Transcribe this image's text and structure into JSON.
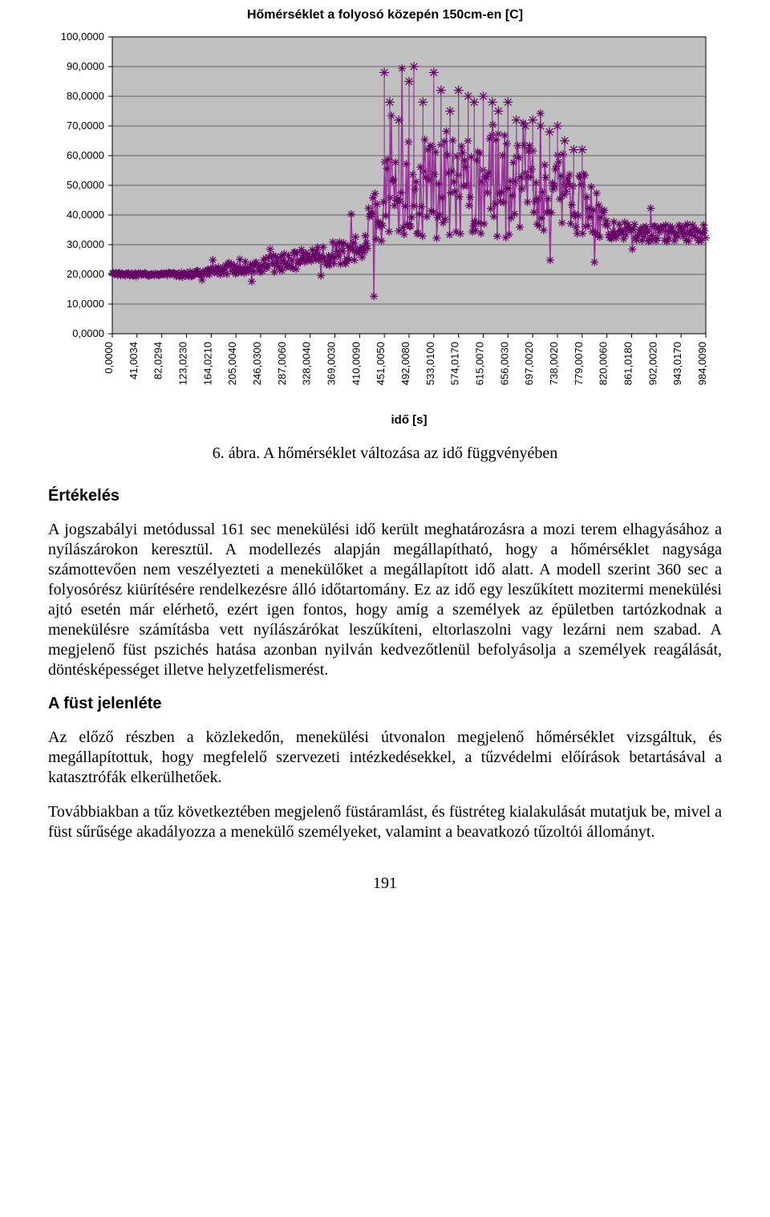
{
  "chart": {
    "type": "scatter-line",
    "title": "Hőmérséklet a folyosó közepén 150cm-en [C]",
    "title_fontsize": 16,
    "ylabel_ticks": [
      "0,0000",
      "10,0000",
      "20,0000",
      "30,0000",
      "40,0000",
      "50,0000",
      "60,0000",
      "70,0000",
      "80,0000",
      "90,0000",
      "100,0000"
    ],
    "ylim": [
      0,
      100
    ],
    "ytick_step": 10,
    "xlabel": "idő [s]",
    "xlabel_fontsize": 15,
    "x_categories": [
      "0,0000",
      "41,0034",
      "82,0294",
      "123,0230",
      "164,0210",
      "205,0040",
      "246,0300",
      "287,0060",
      "328,0040",
      "369,0030",
      "410,0090",
      "451,0050",
      "492,0080",
      "533,0100",
      "574,0170",
      "615,0070",
      "656,0030",
      "697,0020",
      "738,0020",
      "779,0070",
      "820,0060",
      "861,0180",
      "902,0020",
      "943,0170",
      "984,0090"
    ],
    "x_numeric": [
      0,
      41,
      82,
      123,
      164,
      205,
      246,
      287,
      328,
      369,
      410,
      451,
      492,
      533,
      574,
      615,
      656,
      697,
      738,
      779,
      820,
      861,
      902,
      943,
      984
    ],
    "series_color": "#993399",
    "series_color_dark": "#660066",
    "plot_bg": "#c0c0c0",
    "grid_color": "#000000",
    "tick_fontsize": 13,
    "marker_size": 5,
    "series": {
      "base": [
        [
          0,
          20
        ],
        [
          41,
          20
        ],
        [
          82,
          20
        ],
        [
          123,
          20
        ],
        [
          164,
          21
        ],
        [
          205,
          22
        ],
        [
          246,
          23
        ],
        [
          287,
          24
        ],
        [
          328,
          26
        ],
        [
          369,
          27
        ],
        [
          410,
          28
        ],
        [
          451,
          45
        ],
        [
          492,
          48
        ],
        [
          533,
          50
        ],
        [
          574,
          48
        ],
        [
          615,
          50
        ],
        [
          656,
          50
        ],
        [
          697,
          48
        ],
        [
          738,
          48
        ],
        [
          779,
          46
        ],
        [
          820,
          36
        ],
        [
          861,
          34
        ],
        [
          902,
          34
        ],
        [
          943,
          34
        ],
        [
          984,
          34
        ]
      ],
      "noise_band": [
        [
          0,
          1
        ],
        [
          41,
          1
        ],
        [
          82,
          1
        ],
        [
          123,
          2
        ],
        [
          164,
          3
        ],
        [
          205,
          4
        ],
        [
          246,
          5
        ],
        [
          287,
          6
        ],
        [
          328,
          7
        ],
        [
          369,
          8
        ],
        [
          410,
          10
        ],
        [
          451,
          30
        ],
        [
          492,
          35
        ],
        [
          533,
          38
        ],
        [
          574,
          35
        ],
        [
          615,
          35
        ],
        [
          656,
          35
        ],
        [
          697,
          30
        ],
        [
          738,
          28
        ],
        [
          779,
          25
        ],
        [
          820,
          8
        ],
        [
          861,
          6
        ],
        [
          902,
          6
        ],
        [
          943,
          6
        ],
        [
          984,
          6
        ]
      ],
      "peaks": [
        [
          451,
          88
        ],
        [
          460,
          78
        ],
        [
          475,
          72
        ],
        [
          492,
          85
        ],
        [
          500,
          90
        ],
        [
          515,
          78
        ],
        [
          533,
          88
        ],
        [
          545,
          82
        ],
        [
          560,
          75
        ],
        [
          574,
          82
        ],
        [
          590,
          80
        ],
        [
          600,
          78
        ],
        [
          615,
          80
        ],
        [
          630,
          78
        ],
        [
          640,
          75
        ],
        [
          656,
          78
        ],
        [
          670,
          72
        ],
        [
          685,
          70
        ],
        [
          697,
          72
        ],
        [
          710,
          70
        ],
        [
          725,
          68
        ],
        [
          738,
          70
        ],
        [
          750,
          65
        ],
        [
          765,
          62
        ],
        [
          779,
          62
        ]
      ]
    }
  },
  "caption": "6. ábra. A hőmérséklet változása az idő függvényében",
  "section1_title": "Értékelés",
  "para1": "A jogszabályi metódussal 161 sec menekülési idő került meghatározásra a mozi terem elhagyásához a nyílászárokon keresztül. A modellezés alapján megállapítható, hogy a hőmérséklet nagysága számottevően nem veszélyezteti a menekülőket a megállapított idő alatt. A modell szerint 360 sec a folyosórész kiürítésére rendelkezésre álló időtartomány. Ez az idő egy leszűkített mozitermi menekülési ajtó esetén már elérhető, ezért igen fontos, hogy amíg a személyek az épületben tartózkodnak a menekülésre számításba vett nyílászárókat leszűkíteni, eltorlaszolni vagy lezárni nem szabad. A megjelenő füst pszichés hatása azonban nyilván kedvezőtlenül befolyásolja a személyek reagálását, döntésképességet illetve helyzetfelismerést.",
  "section2_title": "A füst jelenléte",
  "para2": "Az előző részben a közlekedőn, menekülési útvonalon megjelenő hőmérséklet vizsgáltuk, és megállapítottuk, hogy megfelelő szervezeti intézkedésekkel, a tűzvédelmi előírások betartásával a katasztrófák elkerülhetőek.",
  "para3": "Továbbiakban a tűz következtében megjelenő füstáramlást, és füstréteg kialakulását mutatjuk be, mivel a füst sűrűsége akadályozza a menekülő személyeket, valamint a beavatkozó tűzoltói állományt.",
  "page_number": "191"
}
